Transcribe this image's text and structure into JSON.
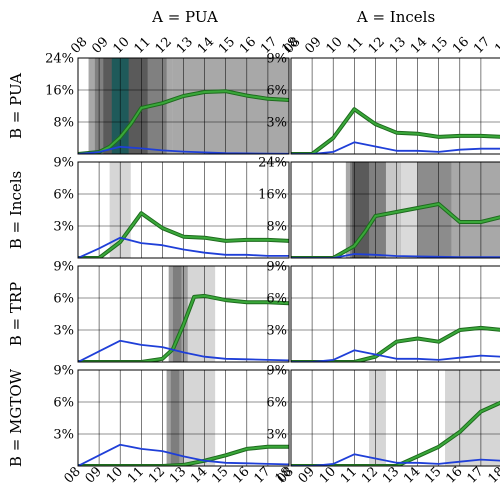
{
  "chart_data": {
    "type": "line",
    "column_titles": [
      "A = PUA",
      "A = Incels"
    ],
    "row_labels": [
      "B = PUA",
      "B = Incels",
      "B = TRP",
      "B = MGTOW"
    ],
    "x_tick_labels": [
      "08",
      "09",
      "10",
      "11",
      "12",
      "13",
      "14",
      "15",
      "16",
      "17",
      "18"
    ],
    "xlim": [
      8,
      18
    ],
    "series_colors": {
      "green": "#3aa83a",
      "green_edge": "#1e6b1e",
      "blue": "#1f3fd8"
    },
    "grid": true,
    "panels": [
      {
        "id": "pua-pua",
        "row": 0,
        "col": 0,
        "ylim": [
          0,
          24
        ],
        "yticks": [
          0,
          8,
          16,
          24
        ],
        "ytick_labels": [
          "",
          "8%",
          "16%",
          "24%"
        ],
        "shaded": [
          {
            "x0": 8.5,
            "x1": 12.5,
            "shade": "#a8a8a8"
          },
          {
            "x0": 8.8,
            "x1": 12.2,
            "shade": "#808080"
          },
          {
            "x0": 9.2,
            "x1": 11.3,
            "shade": "#5a5a5a"
          },
          {
            "x0": 9.6,
            "x1": 10.4,
            "shade": "#1f5a5a"
          },
          {
            "x0": 12.5,
            "x1": 18,
            "shade": "#a8a8a8"
          }
        ],
        "series": [
          {
            "color": "green",
            "x": [
              8,
              9,
              9.5,
              10,
              10.5,
              11,
              12,
              13,
              14,
              15,
              16,
              17,
              18
            ],
            "y": [
              0,
              0.5,
              1.8,
              4.2,
              7.5,
              11.5,
              12.7,
              14.5,
              15.5,
              15.7,
              14.6,
              13.8,
              13.5
            ]
          },
          {
            "color": "blue",
            "x": [
              8,
              9,
              10,
              11,
              12,
              13,
              14,
              15,
              16,
              17,
              18
            ],
            "y": [
              0,
              0.5,
              1.8,
              1.4,
              0.9,
              0.6,
              0.4,
              0.2,
              0.15,
              0.1,
              0.05
            ]
          }
        ]
      },
      {
        "id": "incels-pua",
        "row": 0,
        "col": 1,
        "ylim": [
          0,
          9
        ],
        "yticks": [
          0,
          3,
          6,
          9
        ],
        "ytick_labels": [
          "",
          "3%",
          "6%",
          "9%"
        ],
        "shaded": [],
        "series": [
          {
            "color": "green",
            "x": [
              8,
              9,
              10,
              11,
              12,
              13,
              14,
              15,
              16,
              17,
              18
            ],
            "y": [
              0,
              0,
              1.5,
              4.2,
              2.8,
              2.0,
              1.9,
              1.6,
              1.7,
              1.7,
              1.6
            ]
          },
          {
            "color": "blue",
            "x": [
              8,
              9,
              10,
              11,
              12,
              13,
              14,
              15,
              16,
              17,
              18
            ],
            "y": [
              0,
              0,
              0.2,
              1.1,
              0.7,
              0.3,
              0.3,
              0.2,
              0.4,
              0.5,
              0.5
            ]
          }
        ]
      },
      {
        "id": "pua-incels",
        "row": 1,
        "col": 0,
        "ylim": [
          0,
          9
        ],
        "yticks": [
          0,
          3,
          6,
          9
        ],
        "ytick_labels": [
          "",
          "3%",
          "6%",
          "9%"
        ],
        "shaded": [
          {
            "x0": 9.5,
            "x1": 10.5,
            "shade": "#d6d6d6"
          }
        ],
        "series": [
          {
            "color": "green",
            "x": [
              8,
              9,
              10,
              11,
              12,
              13,
              14,
              15,
              16,
              17,
              18
            ],
            "y": [
              0,
              0,
              1.5,
              4.2,
              2.8,
              2.0,
              1.9,
              1.6,
              1.7,
              1.7,
              1.6
            ]
          },
          {
            "color": "blue",
            "x": [
              8,
              9,
              10,
              11,
              12,
              13,
              14,
              15,
              16,
              17,
              18
            ],
            "y": [
              0,
              0.9,
              1.9,
              1.4,
              1.2,
              0.8,
              0.5,
              0.3,
              0.3,
              0.2,
              0.2
            ]
          }
        ]
      },
      {
        "id": "incels-incels",
        "row": 1,
        "col": 1,
        "ylim": [
          0,
          24
        ],
        "yticks": [
          0,
          8,
          16,
          24
        ],
        "ytick_labels": [
          "",
          "8%",
          "16%",
          "24%"
        ],
        "shaded": [
          {
            "x0": 10.6,
            "x1": 18,
            "shade": "#a8a8a8"
          },
          {
            "x0": 10.8,
            "x1": 13.5,
            "shade": "#808080"
          },
          {
            "x0": 10.9,
            "x1": 11.7,
            "shade": "#5a5a5a"
          },
          {
            "x0": 12.5,
            "x1": 13.2,
            "shade": "#c8c8c8"
          },
          {
            "x0": 13.2,
            "x1": 14.0,
            "shade": "#dadada"
          },
          {
            "x0": 14.0,
            "x1": 15.6,
            "shade": "#8c8c8c"
          }
        ],
        "series": [
          {
            "color": "green",
            "x": [
              8,
              9,
              10,
              11,
              11.5,
              12,
              13,
              14,
              15,
              16,
              17,
              18
            ],
            "y": [
              0,
              0,
              0,
              3.0,
              6.5,
              10.5,
              11.5,
              12.5,
              13.5,
              9.0,
              9.0,
              10.3
            ]
          },
          {
            "color": "blue",
            "x": [
              8,
              9,
              10,
              11,
              12,
              13,
              14,
              15,
              16,
              17,
              18
            ],
            "y": [
              0,
              0,
              0,
              1.0,
              0.8,
              0.5,
              0.4,
              0.3,
              0.2,
              0.2,
              0.2
            ]
          }
        ]
      },
      {
        "id": "pua-trp",
        "row": 2,
        "col": 0,
        "ylim": [
          0,
          9
        ],
        "yticks": [
          0,
          3,
          6,
          9
        ],
        "ytick_labels": [
          "",
          "3%",
          "6%",
          "9%"
        ],
        "shaded": [
          {
            "x0": 12.3,
            "x1": 14.5,
            "shade": "#d6d6d6"
          },
          {
            "x0": 12.3,
            "x1": 13.2,
            "shade": "#a0a0a0"
          },
          {
            "x0": 12.5,
            "x1": 12.9,
            "shade": "#7e7e7e"
          }
        ],
        "series": [
          {
            "color": "green",
            "x": [
              8,
              9,
              10,
              11,
              12,
              12.5,
              13,
              13.5,
              14,
              15,
              16,
              17,
              18
            ],
            "y": [
              0,
              0,
              0,
              0,
              0.3,
              1.2,
              3.5,
              6.1,
              6.2,
              5.8,
              5.6,
              5.6,
              5.5
            ]
          },
          {
            "color": "blue",
            "x": [
              8,
              9,
              10,
              11,
              12,
              13,
              14,
              15,
              16,
              17,
              18
            ],
            "y": [
              0,
              1.0,
              2.0,
              1.6,
              1.4,
              0.9,
              0.5,
              0.3,
              0.25,
              0.2,
              0.15
            ]
          }
        ]
      },
      {
        "id": "incels-trp",
        "row": 2,
        "col": 1,
        "ylim": [
          0,
          9
        ],
        "yticks": [
          0,
          3,
          6,
          9
        ],
        "ytick_labels": [
          "",
          "3%",
          "6%",
          "9%"
        ],
        "shaded": [],
        "series": [
          {
            "color": "green",
            "x": [
              8,
              9,
              10,
              11,
              12,
              13,
              14,
              15,
              16,
              17,
              18
            ],
            "y": [
              0,
              0,
              0,
              0,
              0.5,
              1.9,
              2.2,
              1.9,
              3.0,
              3.2,
              3.0
            ]
          },
          {
            "color": "blue",
            "x": [
              8,
              9,
              10,
              11,
              12,
              13,
              14,
              15,
              16,
              17,
              18
            ],
            "y": [
              0,
              0,
              0.2,
              1.1,
              0.7,
              0.3,
              0.3,
              0.2,
              0.4,
              0.6,
              0.5
            ]
          }
        ]
      },
      {
        "id": "pua-mgtow",
        "row": 3,
        "col": 0,
        "ylim": [
          0,
          9
        ],
        "yticks": [
          0,
          3,
          6,
          9
        ],
        "ytick_labels": [
          "",
          "3%",
          "6%",
          "9%"
        ],
        "shaded": [
          {
            "x0": 12.2,
            "x1": 14.5,
            "shade": "#d6d6d6"
          },
          {
            "x0": 12.2,
            "x1": 13.0,
            "shade": "#a0a0a0"
          },
          {
            "x0": 12.4,
            "x1": 12.8,
            "shade": "#7e7e7e"
          }
        ],
        "series": [
          {
            "color": "green",
            "x": [
              8,
              9,
              10,
              11,
              12,
              13,
              14,
              15,
              16,
              17,
              18
            ],
            "y": [
              0,
              0,
              0,
              0,
              0,
              0.1,
              0.5,
              1.0,
              1.6,
              1.8,
              1.8
            ]
          },
          {
            "color": "blue",
            "x": [
              8,
              9,
              10,
              11,
              12,
              13,
              14,
              15,
              16,
              17,
              18
            ],
            "y": [
              0,
              1.0,
              2.0,
              1.6,
              1.4,
              0.9,
              0.5,
              0.3,
              0.25,
              0.2,
              0.15
            ]
          }
        ]
      },
      {
        "id": "incels-mgtow",
        "row": 3,
        "col": 1,
        "ylim": [
          0,
          9
        ],
        "yticks": [
          0,
          3,
          6,
          9
        ],
        "ytick_labels": [
          "",
          "3%",
          "6%",
          "9%"
        ],
        "shaded": [
          {
            "x0": 11.7,
            "x1": 12.5,
            "shade": "#d6d6d6"
          },
          {
            "x0": 15.3,
            "x1": 18,
            "shade": "#d6d6d6"
          }
        ],
        "series": [
          {
            "color": "green",
            "x": [
              8,
              9,
              10,
              11,
              12,
              13,
              14,
              15,
              16,
              17,
              18
            ],
            "y": [
              0,
              0,
              0,
              0,
              0,
              0,
              0.9,
              1.8,
              3.2,
              5.1,
              6.0
            ]
          },
          {
            "color": "blue",
            "x": [
              8,
              9,
              10,
              11,
              12,
              13,
              14,
              15,
              16,
              17,
              18
            ],
            "y": [
              0,
              0,
              0.2,
              1.1,
              0.7,
              0.3,
              0.3,
              0.2,
              0.4,
              0.6,
              0.5
            ]
          }
        ]
      }
    ]
  }
}
